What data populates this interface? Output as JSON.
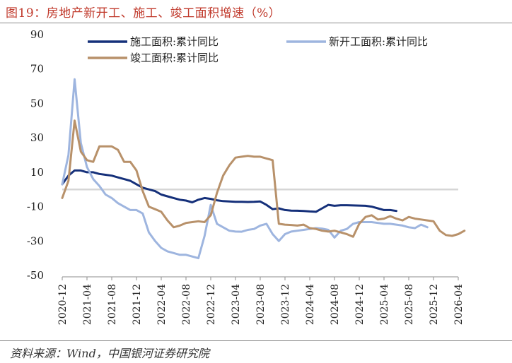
{
  "title": "图19：房地产新开工、施工、竣工面积增速（%）",
  "source": "资料来源：Wind，中国银河证券研究院",
  "chart_data": {
    "type": "line",
    "ylim": [
      -50,
      90
    ],
    "yticks": [
      90,
      70,
      50,
      30,
      10,
      -10,
      -30,
      -50
    ],
    "xticks": [
      "2020-12",
      "2021-04",
      "2021-08",
      "2021-12",
      "2022-04",
      "2022-08",
      "2022-12",
      "2023-04",
      "2023-08",
      "2023-12",
      "2024-04",
      "2024-08",
      "2024-12",
      "2025-04",
      "2025-08",
      "2025-12",
      "2026-04"
    ],
    "zero_line": 0,
    "legend": [
      {
        "key": "s0",
        "label": "施工面积:累计同比"
      },
      {
        "key": "s1",
        "label": "新开工面积:累计同比"
      },
      {
        "key": "s2",
        "label": "竣工面积:累计同比"
      }
    ],
    "series": [
      {
        "name": "施工面积:累计同比",
        "color": "#15307a",
        "start": "2020-12",
        "values": [
          3,
          8,
          11,
          11,
          10,
          10,
          9,
          8.5,
          8,
          7,
          6,
          5,
          3,
          1,
          0,
          -1,
          -3,
          -4,
          -5,
          -6,
          -6.5,
          -7.5,
          -6,
          -5,
          -5.5,
          -6.3,
          -6.8,
          -7,
          -7.2,
          -7.2,
          -7.3,
          -7.2,
          -7,
          -9,
          -11.5,
          -11,
          -12,
          -12.3,
          -12.4,
          -12.5,
          -12.8,
          -13,
          -11,
          -9,
          -9.5,
          -9.2,
          -9.2,
          -9.3,
          -9.4,
          -9.5,
          -10,
          -11,
          -12,
          -12,
          -12.5
        ]
      },
      {
        "name": "新开工面积:累计同比",
        "color": "#9eb5df",
        "start": "2020-12",
        "values": [
          3,
          20,
          64,
          27,
          13,
          6,
          2,
          -3,
          -5,
          -8,
          -10,
          -12,
          -12,
          -14,
          -25,
          -30,
          -34,
          -36,
          -37,
          -38,
          -38,
          -39,
          -40,
          -27,
          -9,
          -20,
          -22,
          -24,
          -24.5,
          -24.6,
          -23.5,
          -23,
          -21,
          -20,
          -26,
          -30,
          -26,
          -24.5,
          -24,
          -23.5,
          -23,
          -22.5,
          -22.8,
          -23.5,
          -28,
          -24,
          -23,
          -20,
          -19,
          -19,
          -19,
          -19.5,
          -20,
          -20,
          -20.5,
          -21,
          -22,
          -22.5,
          -20.5,
          -22
        ]
      },
      {
        "name": "竣工面积:累计同比",
        "color": "#b8916a",
        "start": "2020-12",
        "values": [
          -5,
          5,
          40,
          22,
          17,
          16,
          25,
          25,
          25,
          23,
          16,
          16,
          11,
          -1,
          -10,
          -11.5,
          -13,
          -18,
          -22,
          -21,
          -19.5,
          -19,
          -18.5,
          -19,
          -15,
          -2,
          8,
          14,
          18.5,
          19,
          19.5,
          19,
          19,
          18,
          17,
          -20,
          -20.5,
          -20.7,
          -21,
          -20.5,
          -22.5,
          -23,
          -24,
          -24.5,
          -24,
          -25,
          -26,
          -27.5,
          -20,
          -16,
          -15,
          -17.5,
          -17,
          -15.5,
          -17,
          -18,
          -16,
          -17,
          -17.5,
          -18,
          -18.5,
          -24,
          -26.5,
          -27,
          -26,
          -24
        ]
      }
    ]
  }
}
